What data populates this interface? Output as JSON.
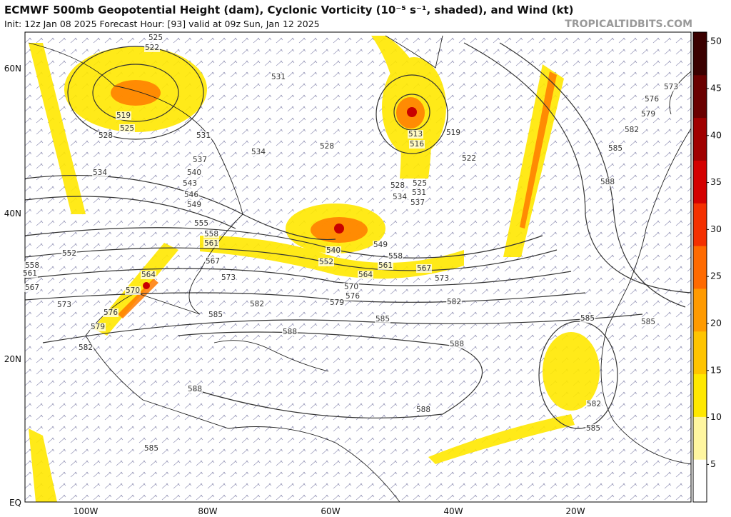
{
  "header": {
    "title": "ECMWF 500mb Geopotential Height (dam), Cyclonic Vorticity (10⁻⁵ s⁻¹, shaded), and Wind (kt)",
    "subtitle": "Init: 12z Jan 08 2025   Forecast Hour: [93]   valid at 09z Sun, Jan 12 2025",
    "credit": "TROPICALTIDBITS.COM"
  },
  "axes": {
    "lat_labels": [
      "60N",
      "40N",
      "20N",
      "EQ"
    ],
    "lon_labels": [
      "100W",
      "80W",
      "60W",
      "40W",
      "20W"
    ]
  },
  "colorbar": {
    "range": [
      1,
      51
    ],
    "ticks": [
      5,
      10,
      15,
      20,
      25,
      30,
      35,
      40,
      45,
      50
    ],
    "colors": [
      "#ffffff",
      "#fff6a0",
      "#ffe800",
      "#ffc400",
      "#ff9a00",
      "#ff6a00",
      "#f43000",
      "#d40000",
      "#a00000",
      "#6a0000",
      "#3a0000"
    ]
  },
  "contour_labels": [
    "525",
    "522",
    "519",
    "525",
    "528",
    "534",
    "531",
    "531",
    "534",
    "537",
    "540",
    "543",
    "546",
    "549",
    "528",
    "555",
    "558",
    "561",
    "552",
    "558",
    "561",
    "567",
    "564",
    "570",
    "573",
    "576",
    "579",
    "582",
    "567",
    "573",
    "582",
    "585",
    "588",
    "588",
    "588",
    "588",
    "585",
    "540",
    "552",
    "549",
    "558",
    "561",
    "564",
    "567",
    "573",
    "570",
    "576",
    "579",
    "582",
    "585",
    "528",
    "525",
    "531",
    "534",
    "537",
    "513",
    "516",
    "519",
    "522",
    "585",
    "582",
    "588",
    "579",
    "576",
    "573",
    "585",
    "585",
    "582",
    "585"
  ]
}
